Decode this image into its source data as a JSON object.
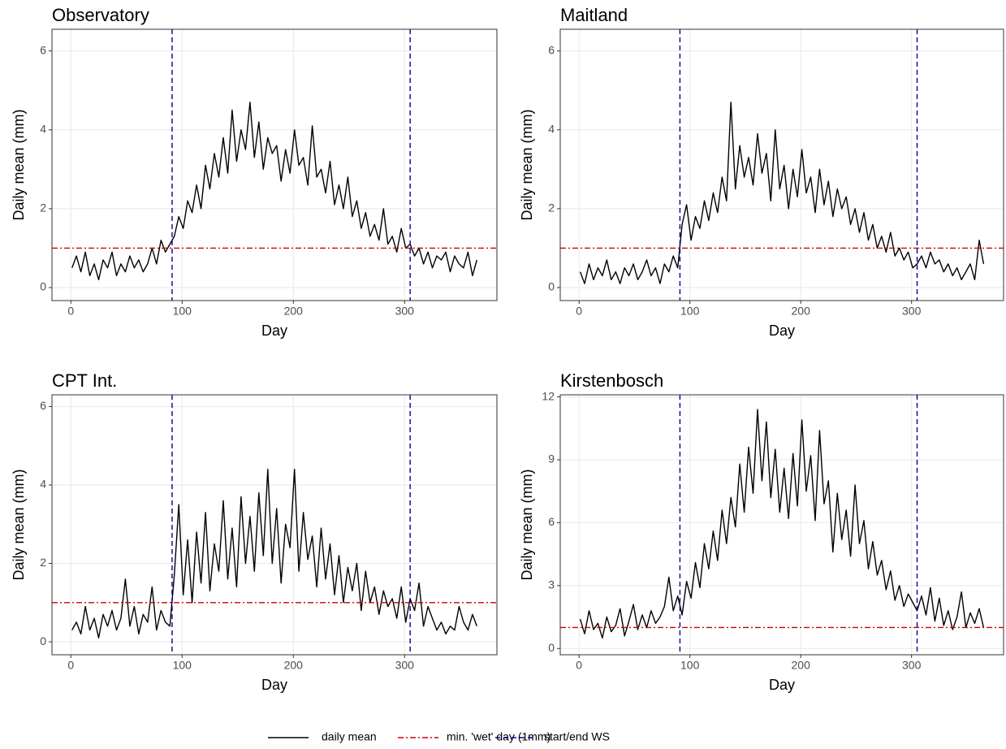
{
  "chart_data": [
    {
      "type": "line",
      "title": "Observatory",
      "xlabel": "Day",
      "ylabel": "Daily mean (mm)",
      "x": [
        1,
        5,
        9,
        13,
        17,
        21,
        25,
        29,
        33,
        37,
        41,
        45,
        49,
        53,
        57,
        61,
        65,
        69,
        73,
        77,
        81,
        85,
        89,
        93,
        97,
        101,
        105,
        109,
        113,
        117,
        121,
        125,
        129,
        133,
        137,
        141,
        145,
        149,
        153,
        157,
        161,
        165,
        169,
        173,
        177,
        181,
        185,
        189,
        193,
        197,
        201,
        205,
        209,
        213,
        217,
        221,
        225,
        229,
        233,
        237,
        241,
        245,
        249,
        253,
        257,
        261,
        265,
        269,
        273,
        277,
        281,
        285,
        289,
        293,
        297,
        301,
        305,
        309,
        313,
        317,
        321,
        325,
        329,
        333,
        337,
        341,
        345,
        349,
        353,
        357,
        361,
        365
      ],
      "series": [
        {
          "name": "daily mean",
          "color": "#000000",
          "values": [
            0.5,
            0.8,
            0.4,
            0.9,
            0.3,
            0.6,
            0.2,
            0.7,
            0.5,
            0.9,
            0.3,
            0.6,
            0.4,
            0.8,
            0.5,
            0.7,
            0.4,
            0.6,
            1.0,
            0.6,
            1.2,
            0.9,
            1.1,
            1.3,
            1.8,
            1.5,
            2.2,
            1.9,
            2.6,
            2.0,
            3.1,
            2.5,
            3.4,
            2.8,
            3.8,
            2.9,
            4.5,
            3.2,
            4.0,
            3.5,
            4.7,
            3.3,
            4.2,
            3.0,
            3.8,
            3.4,
            3.6,
            2.7,
            3.5,
            2.9,
            4.0,
            3.1,
            3.3,
            2.6,
            4.1,
            2.8,
            3.0,
            2.4,
            3.2,
            2.1,
            2.6,
            2.0,
            2.8,
            1.8,
            2.2,
            1.5,
            1.9,
            1.3,
            1.6,
            1.2,
            2.0,
            1.1,
            1.3,
            0.9,
            1.5,
            1.0,
            1.1,
            0.8,
            1.0,
            0.6,
            0.9,
            0.5,
            0.8,
            0.7,
            0.9,
            0.4,
            0.8,
            0.6,
            0.5,
            0.9,
            0.3,
            0.7
          ]
        }
      ],
      "hline": {
        "y": 1,
        "color": "#cc0000",
        "dash": "dashdot"
      },
      "vlines": {
        "x": [
          91,
          305
        ],
        "color": "#00008b",
        "dash": "dashed"
      },
      "xlim": [
        -17,
        383
      ],
      "xticks": [
        0,
        100,
        200,
        300
      ],
      "ylim": [
        -0.33,
        6.55
      ],
      "yticks": [
        0,
        2,
        4,
        6
      ],
      "grid": true
    },
    {
      "type": "line",
      "title": "Maitland",
      "xlabel": "Day",
      "ylabel": "Daily mean (mm)",
      "x": [
        1,
        5,
        9,
        13,
        17,
        21,
        25,
        29,
        33,
        37,
        41,
        45,
        49,
        53,
        57,
        61,
        65,
        69,
        73,
        77,
        81,
        85,
        89,
        93,
        97,
        101,
        105,
        109,
        113,
        117,
        121,
        125,
        129,
        133,
        137,
        141,
        145,
        149,
        153,
        157,
        161,
        165,
        169,
        173,
        177,
        181,
        185,
        189,
        193,
        197,
        201,
        205,
        209,
        213,
        217,
        221,
        225,
        229,
        233,
        237,
        241,
        245,
        249,
        253,
        257,
        261,
        265,
        269,
        273,
        277,
        281,
        285,
        289,
        293,
        297,
        301,
        305,
        309,
        313,
        317,
        321,
        325,
        329,
        333,
        337,
        341,
        345,
        349,
        353,
        357,
        361,
        365
      ],
      "series": [
        {
          "name": "daily mean",
          "color": "#000000",
          "values": [
            0.4,
            0.1,
            0.6,
            0.2,
            0.5,
            0.3,
            0.7,
            0.2,
            0.4,
            0.1,
            0.5,
            0.3,
            0.6,
            0.2,
            0.4,
            0.7,
            0.3,
            0.5,
            0.1,
            0.6,
            0.4,
            0.8,
            0.5,
            1.6,
            2.1,
            1.2,
            1.8,
            1.5,
            2.2,
            1.7,
            2.4,
            1.9,
            2.8,
            2.2,
            4.7,
            2.5,
            3.6,
            2.8,
            3.3,
            2.6,
            3.9,
            2.9,
            3.4,
            2.2,
            4.0,
            2.5,
            3.1,
            2.0,
            3.0,
            2.3,
            3.5,
            2.4,
            2.8,
            1.9,
            3.0,
            2.1,
            2.7,
            1.8,
            2.5,
            2.0,
            2.3,
            1.6,
            2.0,
            1.4,
            1.9,
            1.2,
            1.6,
            1.0,
            1.3,
            0.9,
            1.4,
            0.8,
            1.0,
            0.7,
            0.9,
            0.5,
            0.6,
            0.8,
            0.5,
            0.9,
            0.6,
            0.7,
            0.4,
            0.6,
            0.3,
            0.5,
            0.2,
            0.4,
            0.6,
            0.2,
            1.2,
            0.6
          ]
        }
      ],
      "hline": {
        "y": 1,
        "color": "#cc0000",
        "dash": "dashdot"
      },
      "vlines": {
        "x": [
          91,
          305
        ],
        "color": "#00008b",
        "dash": "dashed"
      },
      "xlim": [
        -17,
        383
      ],
      "xticks": [
        0,
        100,
        200,
        300
      ],
      "ylim": [
        -0.33,
        6.55
      ],
      "yticks": [
        0,
        2,
        4,
        6
      ],
      "grid": true
    },
    {
      "type": "line",
      "title": "CPT Int.",
      "xlabel": "Day",
      "ylabel": "Daily mean (mm)",
      "x": [
        1,
        5,
        9,
        13,
        17,
        21,
        25,
        29,
        33,
        37,
        41,
        45,
        49,
        53,
        57,
        61,
        65,
        69,
        73,
        77,
        81,
        85,
        89,
        93,
        97,
        101,
        105,
        109,
        113,
        117,
        121,
        125,
        129,
        133,
        137,
        141,
        145,
        149,
        153,
        157,
        161,
        165,
        169,
        173,
        177,
        181,
        185,
        189,
        193,
        197,
        201,
        205,
        209,
        213,
        217,
        221,
        225,
        229,
        233,
        237,
        241,
        245,
        249,
        253,
        257,
        261,
        265,
        269,
        273,
        277,
        281,
        285,
        289,
        293,
        297,
        301,
        305,
        309,
        313,
        317,
        321,
        325,
        329,
        333,
        337,
        341,
        345,
        349,
        353,
        357,
        361,
        365
      ],
      "series": [
        {
          "name": "daily mean",
          "color": "#000000",
          "values": [
            0.3,
            0.5,
            0.2,
            0.9,
            0.3,
            0.6,
            0.1,
            0.7,
            0.4,
            0.8,
            0.3,
            0.6,
            1.6,
            0.4,
            0.9,
            0.2,
            0.7,
            0.5,
            1.4,
            0.3,
            0.8,
            0.5,
            0.4,
            1.7,
            3.5,
            1.2,
            2.6,
            1.0,
            2.8,
            1.5,
            3.3,
            1.3,
            2.5,
            1.8,
            3.6,
            1.6,
            2.9,
            1.4,
            3.7,
            2.0,
            3.2,
            1.8,
            3.8,
            2.2,
            4.4,
            2.0,
            3.4,
            1.5,
            3.0,
            2.4,
            4.4,
            1.8,
            3.3,
            2.1,
            2.7,
            1.4,
            2.9,
            1.6,
            2.5,
            1.2,
            2.2,
            1.0,
            1.9,
            1.3,
            2.0,
            0.8,
            1.8,
            1.0,
            1.4,
            0.7,
            1.3,
            0.9,
            1.1,
            0.6,
            1.4,
            0.5,
            1.1,
            0.8,
            1.5,
            0.4,
            0.9,
            0.6,
            0.3,
            0.5,
            0.2,
            0.4,
            0.3,
            0.9,
            0.5,
            0.3,
            0.7,
            0.4
          ]
        }
      ],
      "hline": {
        "y": 1,
        "color": "#cc0000",
        "dash": "dashdot"
      },
      "vlines": {
        "x": [
          91,
          305
        ],
        "color": "#00008b",
        "dash": "dashed"
      },
      "xlim": [
        -17,
        383
      ],
      "xticks": [
        0,
        100,
        200,
        300
      ],
      "ylim": [
        -0.33,
        6.3
      ],
      "yticks": [
        0,
        2,
        4,
        6
      ],
      "grid": true
    },
    {
      "type": "line",
      "title": "Kirstenbosch",
      "xlabel": "Day",
      "ylabel": "Daily mean (mm)",
      "x": [
        1,
        5,
        9,
        13,
        17,
        21,
        25,
        29,
        33,
        37,
        41,
        45,
        49,
        53,
        57,
        61,
        65,
        69,
        73,
        77,
        81,
        85,
        89,
        93,
        97,
        101,
        105,
        109,
        113,
        117,
        121,
        125,
        129,
        133,
        137,
        141,
        145,
        149,
        153,
        157,
        161,
        165,
        169,
        173,
        177,
        181,
        185,
        189,
        193,
        197,
        201,
        205,
        209,
        213,
        217,
        221,
        225,
        229,
        233,
        237,
        241,
        245,
        249,
        253,
        257,
        261,
        265,
        269,
        273,
        277,
        281,
        285,
        289,
        293,
        297,
        301,
        305,
        309,
        313,
        317,
        321,
        325,
        329,
        333,
        337,
        341,
        345,
        349,
        353,
        357,
        361,
        365
      ],
      "series": [
        {
          "name": "daily mean",
          "color": "#000000",
          "values": [
            1.4,
            0.7,
            1.8,
            0.9,
            1.2,
            0.5,
            1.5,
            0.8,
            1.1,
            1.9,
            0.6,
            1.3,
            2.1,
            0.9,
            1.6,
            1.0,
            1.8,
            1.2,
            1.5,
            2.0,
            3.4,
            1.8,
            2.5,
            1.6,
            3.2,
            2.4,
            4.1,
            2.9,
            5.0,
            3.8,
            5.6,
            4.2,
            6.6,
            5.0,
            7.2,
            5.8,
            8.8,
            6.5,
            9.6,
            7.4,
            11.4,
            8.0,
            10.8,
            7.2,
            9.5,
            6.5,
            8.6,
            6.2,
            9.3,
            6.8,
            10.9,
            7.5,
            9.2,
            6.1,
            10.4,
            6.9,
            8.0,
            4.6,
            7.4,
            5.2,
            6.6,
            4.4,
            7.8,
            5.0,
            6.1,
            3.8,
            5.1,
            3.5,
            4.2,
            2.8,
            3.7,
            2.3,
            3.0,
            2.0,
            2.6,
            2.2,
            1.8,
            2.5,
            1.6,
            2.9,
            1.3,
            2.4,
            1.1,
            1.8,
            0.9,
            1.5,
            2.7,
            1.0,
            1.7,
            1.2,
            1.9,
            1.0
          ]
        }
      ],
      "hline": {
        "y": 1,
        "color": "#cc0000",
        "dash": "dashdot"
      },
      "vlines": {
        "x": [
          91,
          305
        ],
        "color": "#00008b",
        "dash": "dashed"
      },
      "xlim": [
        -17,
        383
      ],
      "xticks": [
        0,
        100,
        200,
        300
      ],
      "ylim": [
        -0.3,
        12.1
      ],
      "yticks": [
        0,
        3,
        6,
        9,
        12
      ],
      "grid": true
    }
  ],
  "legend": {
    "items": [
      {
        "label": "daily mean",
        "color": "#000000",
        "dash": "solid"
      },
      {
        "label": "min. 'wet' day (1mm)",
        "color": "#cc0000",
        "dash": "dashdot"
      },
      {
        "label": "start/end WS",
        "color": "#00008b",
        "dash": "dashed"
      }
    ]
  }
}
